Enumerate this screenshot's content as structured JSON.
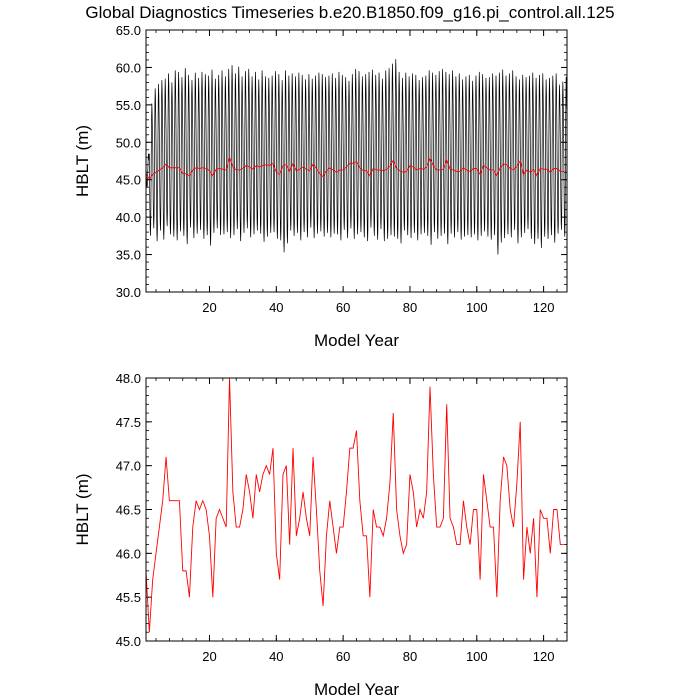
{
  "title": "Global Diagnostics Timeseries b.e20.B1850.f09_g16.pi_control.all.125",
  "colors": {
    "monthly": "#000000",
    "annual": "#ff0000",
    "axis": "#000000"
  },
  "chart_data": [
    {
      "type": "line",
      "xlabel": "Model Year",
      "ylabel": "HBLT (m)",
      "xlim": [
        1,
        127
      ],
      "ylim": [
        30.0,
        65.0
      ],
      "xticks": [
        20,
        40,
        60,
        80,
        100,
        120
      ],
      "xtick_labels": [
        "20",
        "40",
        "60",
        "80",
        "100",
        "120"
      ],
      "yticks": [
        30.0,
        35.0,
        40.0,
        45.0,
        50.0,
        55.0,
        60.0,
        65.0
      ],
      "ytick_labels": [
        "30.0",
        "35.0",
        "40.0",
        "45.0",
        "50.0",
        "55.0",
        "60.0",
        "65.0"
      ],
      "series": [
        {
          "color": "#000000",
          "style": "monthly seasonal cycle",
          "year_start": 1,
          "year_end": 126,
          "annual_peak_max": [
            48.5,
            55.2,
            57.2,
            57.8,
            58.3,
            58.5,
            59.2,
            58.0,
            59.6,
            59.4,
            58.7,
            59.9,
            59.0,
            58.3,
            59.3,
            58.6,
            59.4,
            59.1,
            58.9,
            59.7,
            58.5,
            59.0,
            59.6,
            58.8,
            59.8,
            60.3,
            59.2,
            60.1,
            58.8,
            59.5,
            59.8,
            58.8,
            59.4,
            58.4,
            59.6,
            58.8,
            58.6,
            58.9,
            59.5,
            59.1,
            58.3,
            59.6,
            58.9,
            59.2,
            58.8,
            59.3,
            59.0,
            58.4,
            59.1,
            58.5,
            58.9,
            59.3,
            59.1,
            58.7,
            58.9,
            59.2,
            58.6,
            59.4,
            59.0,
            58.7,
            58.2,
            59.1,
            59.8,
            59.5,
            58.8,
            59.1,
            59.4,
            59.7,
            59.0,
            59.3,
            58.5,
            59.6,
            59.9,
            60.5,
            61.1,
            59.4,
            58.6,
            59.3,
            58.8,
            59.2,
            59.0,
            58.3,
            58.7,
            58.9,
            59.6,
            59.3,
            59.0,
            59.5,
            59.8,
            59.4,
            59.1,
            59.6,
            58.8,
            59.2,
            58.4,
            58.8,
            59.0,
            58.2,
            58.9,
            59.4,
            59.1,
            58.6,
            58.7,
            59.2,
            58.9,
            59.3,
            59.7,
            58.9,
            59.2,
            59.6,
            58.8,
            58.4,
            59.0,
            58.7,
            58.9,
            59.3,
            58.6,
            59.0,
            59.2,
            58.4,
            58.6,
            58.9,
            59.2,
            57.7,
            58.1,
            58.7
          ],
          "annual_trough_min": [
            44.0,
            37.5,
            38.5,
            36.8,
            38.2,
            37.0,
            38.8,
            37.7,
            37.4,
            36.9,
            38.1,
            37.5,
            36.4,
            38.6,
            37.2,
            37.8,
            38.3,
            37.1,
            37.6,
            36.2,
            37.9,
            38.5,
            37.6,
            37.7,
            38.0,
            37.2,
            37.6,
            38.4,
            36.8,
            37.9,
            38.5,
            37.3,
            37.7,
            38.2,
            37.8,
            36.7,
            37.4,
            37.9,
            38.0,
            37.1,
            36.9,
            35.3,
            36.5,
            38.2,
            37.5,
            37.9,
            36.9,
            38.0,
            37.3,
            38.6,
            37.2,
            37.8,
            38.1,
            37.4,
            37.9,
            37.3,
            37.8,
            37.7,
            36.9,
            38.3,
            37.2,
            38.5,
            37.1,
            37.7,
            38.0,
            37.3,
            36.8,
            38.6,
            37.5,
            37.0,
            38.4,
            36.8,
            37.1,
            37.6,
            37.4,
            37.1,
            36.5,
            38.2,
            37.6,
            37.2,
            37.9,
            36.9,
            37.7,
            37.9,
            37.5,
            36.3,
            38.0,
            37.1,
            37.5,
            37.8,
            36.4,
            37.8,
            37.3,
            38.0,
            37.0,
            37.4,
            37.6,
            37.3,
            37.7,
            36.9,
            37.5,
            38.1,
            37.4,
            37.0,
            37.6,
            35.0,
            36.6,
            37.2,
            37.7,
            37.3,
            38.3,
            36.5,
            37.3,
            37.9,
            38.4,
            37.1,
            36.4,
            37.1,
            35.9,
            37.4,
            37.1,
            37.6,
            36.6,
            37.8,
            38.3,
            37.4
          ]
        },
        {
          "color": "#ff0000",
          "style": "annual mean",
          "year_start": 1,
          "year_end": 126,
          "values": [
            45.8,
            45.1,
            45.7,
            46.0,
            46.3,
            46.6,
            47.1,
            46.6,
            46.6,
            46.6,
            46.6,
            45.8,
            45.8,
            45.5,
            46.3,
            46.6,
            46.5,
            46.6,
            46.5,
            46.2,
            45.5,
            46.4,
            46.5,
            46.4,
            46.3,
            48.0,
            46.7,
            46.3,
            46.3,
            46.5,
            46.9,
            46.7,
            46.4,
            46.9,
            46.7,
            46.9,
            47.0,
            46.9,
            47.2,
            46.0,
            45.7,
            46.9,
            47.0,
            46.1,
            47.2,
            46.2,
            46.4,
            46.7,
            46.4,
            46.2,
            47.1,
            46.5,
            45.8,
            45.4,
            46.2,
            46.6,
            46.3,
            46.0,
            46.3,
            46.3,
            46.7,
            47.2,
            47.2,
            47.4,
            46.6,
            46.2,
            46.2,
            45.5,
            46.5,
            46.3,
            46.3,
            46.2,
            46.4,
            46.8,
            47.6,
            46.5,
            46.2,
            46.0,
            46.1,
            46.9,
            46.7,
            46.3,
            46.5,
            46.4,
            46.7,
            47.9,
            46.9,
            46.3,
            46.3,
            46.4,
            47.7,
            46.4,
            46.3,
            46.1,
            46.1,
            46.6,
            46.3,
            46.1,
            46.5,
            46.5,
            45.7,
            46.9,
            46.6,
            46.3,
            46.3,
            45.5,
            46.6,
            47.1,
            47.0,
            46.5,
            46.3,
            46.8,
            47.5,
            45.7,
            46.3,
            46.0,
            46.4,
            45.5,
            46.5,
            46.4,
            46.4,
            46.0,
            46.5,
            46.5,
            46.1,
            46.1
          ]
        }
      ]
    },
    {
      "type": "line",
      "xlabel": "Model Year",
      "ylabel": "HBLT (m)",
      "xlim": [
        1,
        127
      ],
      "ylim": [
        45.0,
        48.0
      ],
      "xticks": [
        20,
        40,
        60,
        80,
        100,
        120
      ],
      "xtick_labels": [
        "20",
        "40",
        "60",
        "80",
        "100",
        "120"
      ],
      "yticks": [
        45.0,
        45.5,
        46.0,
        46.5,
        47.0,
        47.5,
        48.0
      ],
      "ytick_labels": [
        "45.0",
        "45.5",
        "46.0",
        "46.5",
        "47.0",
        "47.5",
        "48.0"
      ],
      "series": [
        {
          "color": "#ff0000",
          "style": "annual mean",
          "year_start": 1,
          "year_end": 126,
          "values": [
            45.8,
            45.1,
            45.7,
            46.0,
            46.3,
            46.6,
            47.1,
            46.6,
            46.6,
            46.6,
            46.6,
            45.8,
            45.8,
            45.5,
            46.3,
            46.6,
            46.5,
            46.6,
            46.5,
            46.2,
            45.5,
            46.4,
            46.5,
            46.4,
            46.3,
            48.0,
            46.7,
            46.3,
            46.3,
            46.5,
            46.9,
            46.7,
            46.4,
            46.9,
            46.7,
            46.9,
            47.0,
            46.9,
            47.2,
            46.0,
            45.7,
            46.9,
            47.0,
            46.1,
            47.2,
            46.2,
            46.4,
            46.7,
            46.4,
            46.2,
            47.1,
            46.5,
            45.8,
            45.4,
            46.2,
            46.6,
            46.3,
            46.0,
            46.3,
            46.3,
            46.7,
            47.2,
            47.2,
            47.4,
            46.6,
            46.2,
            46.2,
            45.5,
            46.5,
            46.3,
            46.3,
            46.2,
            46.4,
            46.8,
            47.6,
            46.5,
            46.2,
            46.0,
            46.1,
            46.9,
            46.7,
            46.3,
            46.5,
            46.4,
            46.7,
            47.9,
            46.9,
            46.3,
            46.3,
            46.4,
            47.7,
            46.4,
            46.3,
            46.1,
            46.1,
            46.6,
            46.3,
            46.1,
            46.5,
            46.5,
            45.7,
            46.9,
            46.6,
            46.3,
            46.3,
            45.5,
            46.6,
            47.1,
            47.0,
            46.5,
            46.3,
            46.8,
            47.5,
            45.7,
            46.3,
            46.0,
            46.4,
            45.5,
            46.5,
            46.4,
            46.4,
            46.0,
            46.5,
            46.5,
            46.1,
            46.1
          ]
        }
      ]
    }
  ]
}
